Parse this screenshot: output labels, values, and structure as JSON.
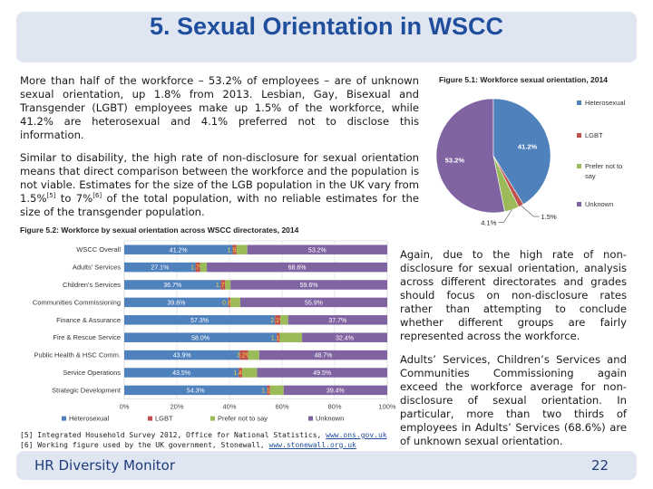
{
  "header": {
    "title": "5. Sexual Orientation in WSCC"
  },
  "body": {
    "para1": "More than half of the workforce – 53.2% of employees – are of unknown sexual orientation, up 1.8% from 2013. Lesbian, Gay, Bisexual and Transgender (LGBT) employees make up 1.5% of the workforce, while 41.2% are heterosexual and 4.1% preferred not to disclose this information.",
    "para2_a": "Similar to disability, the high rate of non-disclosure for sexual orientation means that direct comparison between the workforce and the population is not viable. Estimates for the size of the LGB population in the UK vary from 1.5%",
    "para2_ref1": "[5]",
    "para2_b": " to 7%",
    "para2_ref2": "[6]",
    "para2_c": " of the total population, with no reliable estimates for the size of the transgender population.",
    "para3": "Again, due to the high rate of non-disclosure for sexual orientation, analysis across different directorates and grades should focus on non-disclosure rates rather than attempting to conclude whether different groups are fairly represented across the workforce.",
    "para4": "Adults’ Services, Children’s Services and Communities Commissioning again exceed the workforce average for non-disclosure of sexual orientation. In particular, more than two thirds of employees in Adults’ Services (68.6%) are of unknown sexual orientation."
  },
  "footnotes": [
    {
      "text": "[5] Integrated Household Survey 2012, Office for National Statistics, ",
      "url": "www.ons.gov.uk"
    },
    {
      "text": "[6] Working figure used by the UK government, Stonewall, ",
      "url": "www.stonewall.org.uk"
    }
  ],
  "footer": {
    "title": "HR Diversity Monitor",
    "page": "22"
  },
  "colors": {
    "heterosexual": "#4f81bd",
    "lgbt": "#c0504d",
    "prefer_not": "#9bbb59",
    "unknown": "#8064a2",
    "title_band": "#dfe6f1",
    "title_text": "#1f4e9c"
  },
  "chart_data": [
    {
      "type": "pie",
      "title": "Figure 5.1: Workforce sexual orientation, 2014",
      "categories": [
        "Heterosexual",
        "LGBT",
        "Prefer not to say",
        "Unknown"
      ],
      "values": [
        41.2,
        1.5,
        4.1,
        53.2
      ],
      "labels": [
        "41.2%",
        "1.5%",
        "4.1%",
        "53.2%"
      ],
      "legend": "right"
    },
    {
      "type": "bar",
      "stacked": true,
      "orientation": "horizontal",
      "title": "Figure 5.2: Workforce by sexual orientation across WSCC directorates, 2014",
      "categories": [
        "WSCC Overall",
        "Adults' Services",
        "Children's Services",
        "Communities Commissioning",
        "Finance & Assurance",
        "Fire & Rescue Service",
        "Public Health & HSC Comm.",
        "Service Operations",
        "Strategic Development"
      ],
      "series": [
        {
          "name": "Heterosexual",
          "values": [
            41.2,
            27.1,
            36.7,
            39.6,
            57.3,
            58.0,
            43.9,
            43.5,
            54.3
          ]
        },
        {
          "name": "LGBT",
          "values": [
            1.5,
            1.7,
            1.7,
            0.8,
            2.1,
            1.1,
            3.2,
            1.4,
            1.1
          ]
        },
        {
          "name": "Prefer not to say",
          "values": [
            4.1,
            2.6,
            2.0,
            3.7,
            2.9,
            8.5,
            4.2,
            5.6,
            5.2
          ]
        },
        {
          "name": "Unknown",
          "values": [
            53.2,
            68.6,
            59.6,
            55.9,
            37.7,
            32.4,
            48.7,
            49.5,
            39.4
          ]
        }
      ],
      "data_labels": [
        [
          "41.2%",
          "1.5%",
          "",
          "53.2%"
        ],
        [
          "27.1%",
          "1.7%",
          "",
          "68.6%"
        ],
        [
          "36.7%",
          "1.7%",
          "",
          "59.6%"
        ],
        [
          "39.6%",
          "0.8%",
          "",
          "55.9%"
        ],
        [
          "57.3%",
          "2.1%",
          "",
          "37.7%"
        ],
        [
          "58.0%",
          "1.1%",
          "",
          "32.4%"
        ],
        [
          "43.9%",
          "3.2%",
          "",
          "48.7%"
        ],
        [
          "43.5%",
          "1.4%",
          "",
          "49.5%"
        ],
        [
          "54.3%",
          "1.1%",
          "",
          "39.4%"
        ]
      ],
      "xticks": [
        "0%",
        "20%",
        "40%",
        "60%",
        "80%",
        "100%"
      ],
      "xlim": [
        0,
        100
      ],
      "grid": true,
      "legend": "bottom"
    }
  ]
}
